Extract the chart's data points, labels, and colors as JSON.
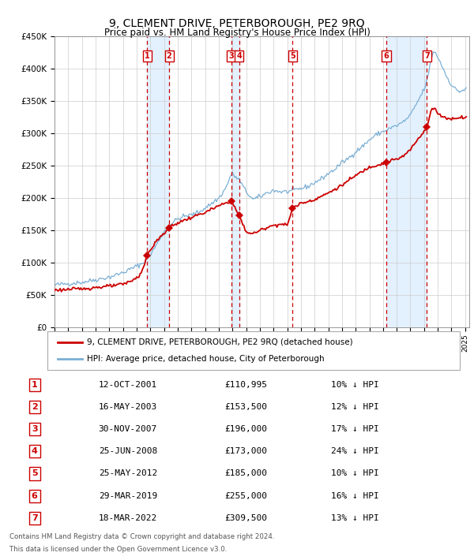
{
  "title": "9, CLEMENT DRIVE, PETERBOROUGH, PE2 9RQ",
  "subtitle": "Price paid vs. HM Land Registry's House Price Index (HPI)",
  "sale_dates_num": [
    2001.78,
    2003.37,
    2007.91,
    2008.48,
    2012.39,
    2019.24,
    2022.21
  ],
  "sale_prices": [
    110995,
    153500,
    196000,
    173000,
    185000,
    255000,
    309500
  ],
  "sale_labels": [
    "1",
    "2",
    "3",
    "4",
    "5",
    "6",
    "7"
  ],
  "sale_dates_str": [
    "12-OCT-2001",
    "16-MAY-2003",
    "30-NOV-2007",
    "25-JUN-2008",
    "25-MAY-2012",
    "29-MAR-2019",
    "18-MAR-2022"
  ],
  "sale_pct": [
    "10%",
    "12%",
    "17%",
    "24%",
    "10%",
    "16%",
    "13%"
  ],
  "property_color": "#cc0000",
  "hpi_color": "#7bafd4",
  "background_shade_color": "#ddeeff",
  "vline_color": "#cc0000",
  "label_box_color": "#cc0000",
  "ylim": [
    0,
    450000
  ],
  "yticks": [
    0,
    50000,
    100000,
    150000,
    200000,
    250000,
    300000,
    350000,
    400000,
    450000
  ],
  "legend_property": "9, CLEMENT DRIVE, PETERBOROUGH, PE2 9RQ (detached house)",
  "legend_hpi": "HPI: Average price, detached house, City of Peterborough",
  "footer1": "Contains HM Land Registry data © Crown copyright and database right 2024.",
  "footer2": "This data is licensed under the Open Government Licence v3.0."
}
